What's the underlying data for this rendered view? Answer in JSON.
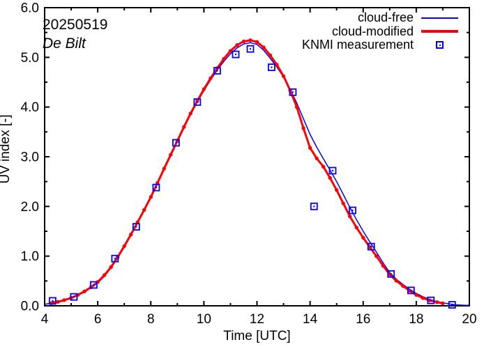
{
  "figure": {
    "date_label": "20250519",
    "station_label": "De Bilt",
    "xlabel": "Time [UTC]",
    "ylabel": "UV index [-]",
    "background": "#ffffff",
    "frame_color": "#000000",
    "legend": [
      {
        "label": "cloud-free",
        "swatch": "thin-line",
        "color": "#0000ff"
      },
      {
        "label": "cloud-modified",
        "swatch": "thick-line",
        "color": "#ff0000"
      },
      {
        "label": "KNMI measurement",
        "swatch": "open-square-dot",
        "color": "#0000ff"
      }
    ]
  },
  "chart_data": {
    "type": "line",
    "title": "",
    "xlabel": "Time [UTC]",
    "ylabel": "UV index [-]",
    "xlim": [
      4,
      20
    ],
    "ylim": [
      0,
      6
    ],
    "x_major_ticks": [
      4,
      6,
      8,
      10,
      12,
      14,
      16,
      18,
      20
    ],
    "x_minor_ticks": [
      5,
      7,
      9,
      11,
      13,
      15,
      17,
      19
    ],
    "y_major_ticks": [
      0,
      1,
      2,
      3,
      4,
      5,
      6
    ],
    "y_minor_ticks": [
      0.5,
      1.5,
      2.5,
      3.5,
      4.5,
      5.5
    ],
    "grid": false,
    "legend_position": "top-right-inside",
    "annotations": [
      "20250519",
      "De Bilt"
    ],
    "series": [
      {
        "name": "cloud-free",
        "kind": "line",
        "color": "#0000ff",
        "line_width": 1.5,
        "x": [
          4,
          4.5,
          5,
          5.5,
          6,
          6.5,
          7,
          7.5,
          8,
          8.5,
          9,
          9.5,
          10,
          10.5,
          11,
          11.5,
          12,
          12.5,
          13,
          13.5,
          14,
          14.5,
          15,
          15.5,
          16,
          16.5,
          17,
          17.5,
          18,
          18.5,
          19,
          19.5,
          20
        ],
        "y": [
          0.03,
          0.08,
          0.15,
          0.28,
          0.46,
          0.76,
          1.18,
          1.66,
          2.17,
          2.74,
          3.3,
          3.85,
          4.33,
          4.74,
          5.07,
          5.27,
          5.26,
          4.98,
          4.6,
          4.08,
          3.45,
          2.96,
          2.5,
          1.98,
          1.5,
          1.08,
          0.67,
          0.43,
          0.25,
          0.13,
          0.06,
          0.02,
          0.01
        ]
      },
      {
        "name": "cloud-modified",
        "kind": "line-with-dots",
        "color": "#ff0000",
        "line_width": 3,
        "marker_interval_hours": 0.25,
        "x": [
          4.25,
          4.5,
          5,
          5.5,
          6,
          6.5,
          7,
          7.5,
          8,
          8.5,
          9,
          9.5,
          10,
          10.5,
          11,
          11.5,
          12,
          12.5,
          13,
          13.5,
          14,
          14.5,
          15,
          15.5,
          16,
          16.5,
          17,
          17.5,
          18,
          18.5,
          19
        ],
        "y": [
          0.05,
          0.08,
          0.16,
          0.29,
          0.48,
          0.78,
          1.2,
          1.68,
          2.19,
          2.76,
          3.32,
          3.87,
          4.36,
          4.78,
          5.13,
          5.32,
          5.31,
          5.04,
          4.62,
          4.0,
          3.18,
          2.8,
          2.33,
          1.8,
          1.37,
          1.0,
          0.63,
          0.4,
          0.22,
          0.11,
          0.05
        ]
      },
      {
        "name": "KNMI measurement",
        "kind": "open-square-dot",
        "color": "#0000ff",
        "x": [
          4.3,
          5.1,
          5.85,
          6.65,
          7.45,
          8.2,
          8.95,
          9.75,
          10.5,
          11.2,
          11.75,
          12.55,
          13.35,
          14.15,
          14.85,
          15.6,
          16.3,
          17.05,
          17.8,
          18.55,
          19.35
        ],
        "y": [
          0.1,
          0.18,
          0.42,
          0.95,
          1.59,
          2.38,
          3.28,
          4.1,
          4.73,
          5.06,
          5.17,
          4.8,
          4.3,
          2.0,
          2.72,
          1.92,
          1.19,
          0.64,
          0.31,
          0.11,
          0.02
        ]
      }
    ]
  }
}
